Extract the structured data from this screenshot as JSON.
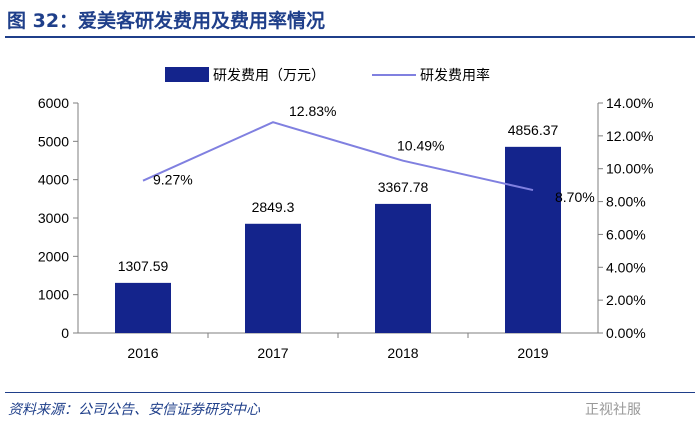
{
  "figure": {
    "title": "图 32：爱美客研发费用及费用率情况",
    "source": "资料来源：公司公告、安信证券研究中心",
    "watermark": "正视社服"
  },
  "colors": {
    "title": "#1f3f8a",
    "bar": "#14248c",
    "line": "#8080e0",
    "axis": "#7f7f7f"
  },
  "chart_data": {
    "type": "bar+line",
    "categories": [
      "2016",
      "2017",
      "2018",
      "2019"
    ],
    "series": [
      {
        "name": "研发费用（万元）",
        "type": "bar",
        "axis": "left",
        "values": [
          1307.59,
          2849.3,
          3367.78,
          4856.37
        ],
        "labels": [
          "1307.59",
          "2849.3",
          "3367.78",
          "4856.37"
        ]
      },
      {
        "name": "研发费用率",
        "type": "line",
        "axis": "right",
        "values": [
          9.27,
          12.83,
          10.49,
          8.7
        ],
        "labels": [
          "9.27%",
          "12.83%",
          "10.49%",
          "8.70%"
        ]
      }
    ],
    "y_left": {
      "min": 0,
      "max": 6000,
      "ticks": [
        "0",
        "1000",
        "2000",
        "3000",
        "4000",
        "5000",
        "6000"
      ]
    },
    "y_right": {
      "min": 0,
      "max": 14,
      "ticks": [
        "0.00%",
        "2.00%",
        "4.00%",
        "6.00%",
        "8.00%",
        "10.00%",
        "12.00%",
        "14.00%"
      ]
    },
    "legend_position": "top"
  }
}
